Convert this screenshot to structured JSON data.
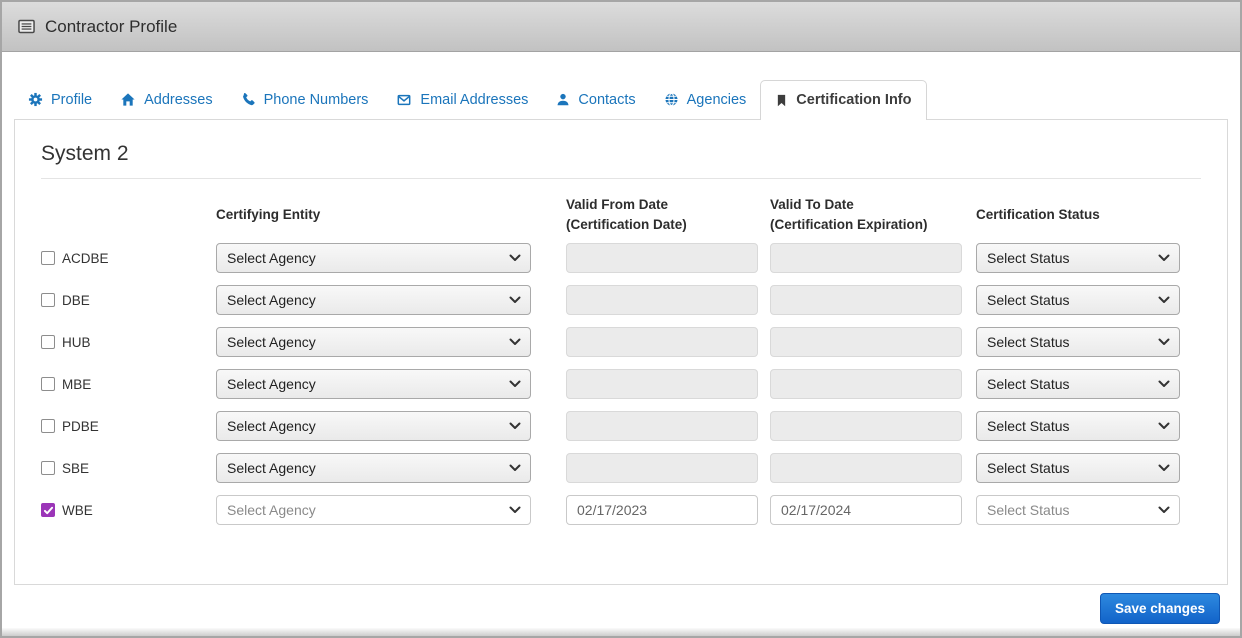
{
  "window": {
    "title": "Contractor Profile"
  },
  "tabs": [
    {
      "label": "Profile",
      "icon": "gear-icon",
      "active": false
    },
    {
      "label": "Addresses",
      "icon": "home-icon",
      "active": false
    },
    {
      "label": "Phone Numbers",
      "icon": "phone-icon",
      "active": false
    },
    {
      "label": "Email Addresses",
      "icon": "envelope-icon",
      "active": false
    },
    {
      "label": "Contacts",
      "icon": "user-icon",
      "active": false
    },
    {
      "label": "Agencies",
      "icon": "globe-icon",
      "active": false
    },
    {
      "label": "Certification Info",
      "icon": "bookmark-icon",
      "active": true
    }
  ],
  "section": {
    "title": "System 2"
  },
  "table": {
    "headers": {
      "certifying_entity": "Certifying Entity",
      "valid_from_line1": "Valid From Date",
      "valid_from_line2": "(Certification Date)",
      "valid_to_line1": "Valid To Date",
      "valid_to_line2": "(Certification Expiration)",
      "certification_status": "Certification Status"
    },
    "rows": [
      {
        "label": "ACDBE",
        "checked": false,
        "enabled": false,
        "agency_value": "Select Agency",
        "valid_from": "",
        "valid_to": "",
        "status_value": "Select Status"
      },
      {
        "label": "DBE",
        "checked": false,
        "enabled": false,
        "agency_value": "Select Agency",
        "valid_from": "",
        "valid_to": "",
        "status_value": "Select Status"
      },
      {
        "label": "HUB",
        "checked": false,
        "enabled": false,
        "agency_value": "Select Agency",
        "valid_from": "",
        "valid_to": "",
        "status_value": "Select Status"
      },
      {
        "label": "MBE",
        "checked": false,
        "enabled": false,
        "agency_value": "Select Agency",
        "valid_from": "",
        "valid_to": "",
        "status_value": "Select Status"
      },
      {
        "label": "PDBE",
        "checked": false,
        "enabled": false,
        "agency_value": "Select Agency",
        "valid_from": "",
        "valid_to": "",
        "status_value": "Select Status"
      },
      {
        "label": "SBE",
        "checked": false,
        "enabled": false,
        "agency_value": "Select Agency",
        "valid_from": "",
        "valid_to": "",
        "status_value": "Select Status"
      },
      {
        "label": "WBE",
        "checked": true,
        "enabled": true,
        "agency_value": "Select Agency",
        "valid_from": "02/17/2023",
        "valid_to": "02/17/2024",
        "status_value": "Select Status"
      }
    ]
  },
  "footer": {
    "save_label": "Save changes"
  },
  "colors": {
    "tab_link_blue": "#1b75bb",
    "save_button_blue": "#1263c9",
    "checkbox_purple": "#9b35b8",
    "panel_border": "#d9d9d9"
  }
}
